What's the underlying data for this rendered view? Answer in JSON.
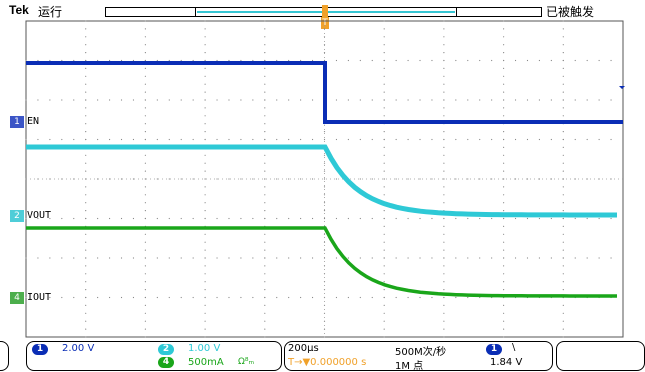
{
  "header": {
    "brand": "Tek",
    "run_state": "运行",
    "trigger_status": "已被触发",
    "trigger_marker": "T"
  },
  "channels": [
    {
      "marker": "1",
      "label": "EN",
      "color": "#0a2db5"
    },
    {
      "marker": "2",
      "label": "VOUT",
      "color": "#2ec9d6"
    },
    {
      "marker": "4",
      "label": "IOUT",
      "color": "#1aa61a"
    }
  ],
  "ch1_setting": {
    "num": "1",
    "value": "2.00 V"
  },
  "ch2_setting": {
    "num": "2",
    "value": "1.00 V"
  },
  "ch4_setting": {
    "num": "4",
    "value": "500mA",
    "extra": "Ω⁸ₘ"
  },
  "timebase": {
    "value": "200µs",
    "trigger_pos": "T→▼0.000000 s"
  },
  "acquisition": {
    "rate": "500M次/秒",
    "points": "1M 点"
  },
  "trigger": {
    "source": "1",
    "slope": "\\",
    "level": "1.84 V"
  },
  "colors": {
    "ch1": "#0a2db5",
    "ch2": "#2ec9d6",
    "ch4": "#1aa61a",
    "trigger": "#f0a12a"
  }
}
